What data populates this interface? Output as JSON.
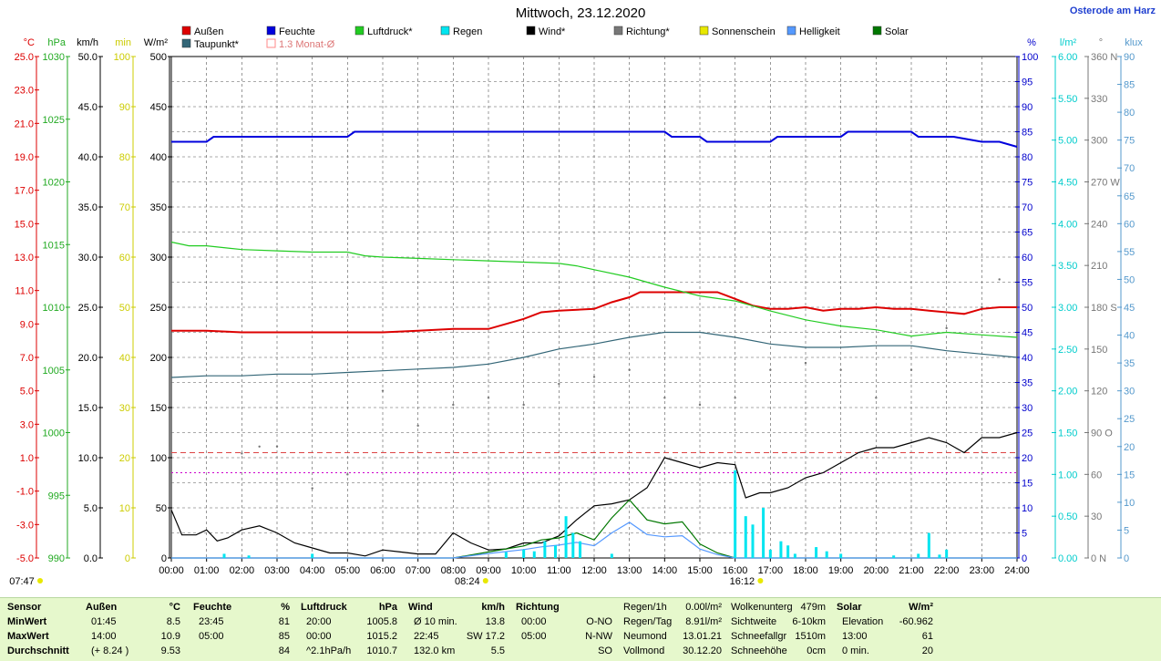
{
  "title": "Mittwoch, 23.12.2020",
  "location": "Osterode am Harz",
  "colors": {
    "aussen": "#dd0000",
    "feuchte": "#0000dd",
    "luftdruck": "#22cc22",
    "regen": "#00e5f0",
    "wind": "#000000",
    "richtung": "#777777",
    "sonnenschein": "#e8e800",
    "helligkeit": "#5599ff",
    "solar": "#007700",
    "taupunkt": "#336677",
    "monat": "#ff8888"
  },
  "legend": [
    {
      "key": "aussen",
      "label": "Außen"
    },
    {
      "key": "feuchte",
      "label": "Feuchte"
    },
    {
      "key": "luftdruck",
      "label": "Luftdruck*"
    },
    {
      "key": "regen",
      "label": "Regen"
    },
    {
      "key": "wind",
      "label": "Wind*"
    },
    {
      "key": "richtung",
      "label": "Richtung*"
    },
    {
      "key": "sonnenschein",
      "label": "Sonnenschein"
    },
    {
      "key": "helligkeit",
      "label": "Helligkeit"
    },
    {
      "key": "solar",
      "label": "Solar"
    },
    {
      "key": "taupunkt",
      "label": "Taupunkt*"
    },
    {
      "key": "monat",
      "label": "1.3 Monat-Ø"
    }
  ],
  "chart_data": {
    "type": "line",
    "x_ticks": [
      "00:00",
      "01:00",
      "02:00",
      "03:00",
      "04:00",
      "05:00",
      "06:00",
      "07:00",
      "08:00",
      "09:00",
      "10:00",
      "11:00",
      "12:00",
      "13:00",
      "14:00",
      "15:00",
      "16:00",
      "17:00",
      "18:00",
      "19:00",
      "20:00",
      "21:00",
      "22:00",
      "23:00",
      "24:00"
    ],
    "axes_left": [
      {
        "unit": "°C",
        "color": "#dd0000",
        "ticks": [
          "25.0",
          "23.0",
          "21.0",
          "19.0",
          "17.0",
          "15.0",
          "13.0",
          "11.0",
          "9.0",
          "7.0",
          "5.0",
          "3.0",
          "1.0",
          "-1.0",
          "-3.0",
          "-5.0"
        ]
      },
      {
        "unit": "hPa",
        "color": "#22aa22",
        "ticks": [
          "1030",
          "1025",
          "1020",
          "1015",
          "1010",
          "1005",
          "1000",
          "995",
          "990"
        ]
      },
      {
        "unit": "km/h",
        "color": "#000000",
        "ticks": [
          "50.0",
          "45.0",
          "40.0",
          "35.0",
          "30.0",
          "25.0",
          "20.0",
          "15.0",
          "10.0",
          "5.0",
          "0.0"
        ]
      },
      {
        "unit": "min",
        "color": "#cccc00",
        "ticks": [
          "100",
          "90",
          "80",
          "70",
          "60",
          "50",
          "40",
          "30",
          "20",
          "10",
          "0"
        ]
      },
      {
        "unit": "W/m²",
        "color": "#000000",
        "ticks": [
          "500",
          "450",
          "400",
          "350",
          "300",
          "250",
          "200",
          "150",
          "100",
          "50",
          "0"
        ]
      }
    ],
    "axes_right": [
      {
        "unit": "%",
        "color": "#0000cc",
        "ticks": [
          "100",
          "95",
          "90",
          "85",
          "80",
          "75",
          "70",
          "65",
          "60",
          "55",
          "50",
          "45",
          "40",
          "35",
          "30",
          "25",
          "20",
          "15",
          "10",
          "5",
          "0"
        ]
      },
      {
        "unit": "l/m²",
        "color": "#00cccc",
        "ticks": [
          "6.00",
          "5.50",
          "5.00",
          "4.50",
          "4.00",
          "3.50",
          "3.00",
          "2.50",
          "2.00",
          "1.50",
          "1.00",
          "0.50",
          "0.00"
        ]
      },
      {
        "unit": "°",
        "color": "#777777",
        "ticks": [
          "360 N",
          "330",
          "300",
          "270 W",
          "240",
          "210",
          "180 S",
          "150",
          "120",
          "90 O",
          "60",
          "30",
          "0 N"
        ]
      },
      {
        "unit": "klux",
        "color": "#5599cc",
        "ticks": [
          "90",
          "85",
          "80",
          "75",
          "70",
          "65",
          "60",
          "55",
          "50",
          "45",
          "40",
          "35",
          "30",
          "25",
          "20",
          "15",
          "10",
          "5",
          "0"
        ]
      }
    ],
    "temp_range": [
      -5,
      25
    ],
    "feuchte_range": [
      0,
      100
    ],
    "wind_range": [
      0,
      50
    ],
    "pressure_range": [
      990,
      1030
    ],
    "rain_range": [
      0,
      6
    ],
    "series": [
      {
        "name": "Außen",
        "key": "aussen",
        "unit": "°C",
        "x": [
          0,
          1,
          2,
          3,
          4,
          5,
          6,
          7,
          8,
          9,
          10,
          10.5,
          11,
          12,
          12.5,
          13,
          13.3,
          14,
          14.5,
          15,
          15.5,
          16,
          16.5,
          17,
          17.5,
          18,
          18.5,
          19,
          19.5,
          20,
          20.5,
          21,
          21.5,
          22,
          22.5,
          23,
          23.5,
          24
        ],
        "y": [
          8.6,
          8.6,
          8.5,
          8.5,
          8.5,
          8.5,
          8.5,
          8.6,
          8.7,
          8.7,
          9.3,
          9.7,
          9.8,
          9.9,
          10.3,
          10.6,
          10.9,
          10.9,
          10.9,
          10.9,
          10.9,
          10.5,
          10.1,
          9.9,
          9.9,
          10.0,
          9.8,
          9.9,
          9.9,
          10.0,
          9.9,
          9.9,
          9.8,
          9.7,
          9.6,
          9.9,
          10.0,
          10.0
        ]
      },
      {
        "name": "Feuchte",
        "key": "feuchte",
        "unit": "%",
        "x": [
          0,
          1,
          1.2,
          5,
          5.2,
          14,
          14.2,
          15,
          15.2,
          16,
          16.2,
          17,
          17.2,
          18,
          18.2,
          19,
          19.2,
          21,
          21.2,
          22,
          22.2,
          23,
          23.5,
          24
        ],
        "y": [
          83,
          83,
          84,
          84,
          85,
          85,
          84,
          84,
          83,
          83,
          83,
          83,
          84,
          84,
          84,
          84,
          85,
          85,
          84,
          84,
          84,
          83,
          83,
          82
        ]
      },
      {
        "name": "Luftdruck",
        "key": "luftdruck",
        "unit": "hPa",
        "x": [
          0,
          0.5,
          1,
          2,
          3,
          4,
          5,
          5.5,
          6,
          7,
          8,
          9,
          10,
          11,
          11.5,
          12,
          13,
          14,
          15,
          16,
          17,
          18,
          19,
          20,
          21,
          22,
          23,
          24
        ],
        "y": [
          1015.2,
          1014.9,
          1014.9,
          1014.6,
          1014.5,
          1014.4,
          1014.4,
          1014.1,
          1014.0,
          1013.9,
          1013.8,
          1013.7,
          1013.6,
          1013.5,
          1013.3,
          1013.0,
          1012.4,
          1011.6,
          1010.9,
          1010.5,
          1009.7,
          1009.0,
          1008.5,
          1008.2,
          1007.7,
          1008.0,
          1007.8,
          1007.6
        ]
      },
      {
        "name": "Taupunkt",
        "key": "taupunkt",
        "unit": "°C",
        "x": [
          0,
          1,
          2,
          3,
          4,
          5,
          6,
          7,
          8,
          9,
          10,
          11,
          12,
          13,
          14,
          15,
          16,
          17,
          18,
          19,
          20,
          21,
          22,
          23,
          24
        ],
        "y": [
          5.8,
          5.9,
          5.9,
          6.0,
          6.0,
          6.1,
          6.2,
          6.3,
          6.4,
          6.6,
          7.0,
          7.5,
          7.8,
          8.2,
          8.5,
          8.5,
          8.2,
          7.8,
          7.6,
          7.6,
          7.7,
          7.7,
          7.4,
          7.2,
          7.0
        ]
      },
      {
        "name": "Wind",
        "key": "wind",
        "unit": "km/h",
        "x": [
          0,
          0.3,
          0.7,
          1,
          1.3,
          1.6,
          2,
          2.5,
          3,
          3.5,
          4,
          4.5,
          5,
          5.5,
          6,
          6.5,
          7,
          7.5,
          8,
          8.5,
          9,
          9.5,
          10,
          10.5,
          11,
          11.5,
          12,
          12.5,
          13,
          13.5,
          14,
          14.5,
          15,
          15.5,
          16,
          16.3,
          16.7,
          17,
          17.5,
          18,
          18.5,
          19,
          19.5,
          20,
          20.5,
          21,
          21.5,
          22,
          22.5,
          23,
          23.5,
          24
        ],
        "y": [
          4.8,
          2.3,
          2.3,
          2.8,
          1.7,
          2.0,
          2.8,
          3.2,
          2.5,
          1.5,
          1.0,
          0.5,
          0.5,
          0.2,
          0.8,
          0.6,
          0.4,
          0.4,
          2.5,
          1.5,
          0.8,
          0.9,
          1.5,
          1.5,
          2.2,
          3.8,
          5.2,
          5.4,
          5.8,
          7.0,
          10.0,
          9.5,
          9.0,
          9.5,
          9.3,
          6.0,
          6.5,
          6.5,
          7.0,
          8.0,
          8.5,
          9.5,
          10.5,
          11.0,
          11.0,
          11.5,
          12.0,
          11.5,
          10.5,
          12.0,
          12.0,
          12.5
        ]
      },
      {
        "name": "Solar",
        "key": "solar",
        "unit": "W/m²",
        "x": [
          0,
          8,
          9,
          10,
          10.5,
          11,
          11.5,
          12,
          12.5,
          13,
          13.5,
          14,
          14.5,
          15,
          15.5,
          16,
          24
        ],
        "y": [
          0,
          0,
          6,
          12,
          18,
          20,
          25,
          18,
          40,
          58,
          38,
          34,
          36,
          14,
          5,
          0,
          0
        ]
      },
      {
        "name": "Helligkeit",
        "key": "helligkeit",
        "unit": "klux",
        "x": [
          0,
          8,
          9,
          10,
          10.5,
          11,
          11.5,
          12,
          12.5,
          13,
          13.5,
          14,
          14.5,
          15,
          15.5,
          16,
          24
        ],
        "y": [
          0,
          0,
          0.8,
          1.5,
          2.0,
          2.3,
          2.8,
          2.2,
          4.5,
          6.4,
          4.2,
          3.8,
          4.0,
          1.6,
          0.6,
          0,
          0
        ]
      },
      {
        "name": "Richtung",
        "key": "richtung",
        "unit": "°",
        "x": [
          2,
          2.5,
          3,
          4,
          5,
          6,
          7,
          8,
          9,
          10,
          11,
          12,
          13,
          14,
          15,
          16,
          17,
          18,
          19,
          20,
          21,
          22,
          23,
          23.5
        ],
        "y": [
          75,
          80,
          80,
          50,
          60,
          120,
          95,
          110,
          115,
          110,
          125,
          130,
          135,
          115,
          110,
          115,
          135,
          140,
          135,
          115,
          135,
          165,
          180,
          200
        ]
      },
      {
        "name": "Regen",
        "key": "regen",
        "unit": "l/m²",
        "bars": [
          [
            1.5,
            0.05
          ],
          [
            2.2,
            0.03
          ],
          [
            4,
            0.05
          ],
          [
            9.5,
            0.07
          ],
          [
            10,
            0.1
          ],
          [
            10.3,
            0.08
          ],
          [
            10.6,
            0.2
          ],
          [
            10.9,
            0.15
          ],
          [
            11.2,
            0.5
          ],
          [
            11.4,
            0.3
          ],
          [
            11.6,
            0.2
          ],
          [
            12.5,
            0.05
          ],
          [
            16,
            1.05
          ],
          [
            16.3,
            0.5
          ],
          [
            16.5,
            0.4
          ],
          [
            16.8,
            0.6
          ],
          [
            17,
            0.1
          ],
          [
            17.3,
            0.2
          ],
          [
            17.5,
            0.15
          ],
          [
            17.7,
            0.05
          ],
          [
            18.3,
            0.13
          ],
          [
            18.6,
            0.08
          ],
          [
            19.0,
            0.05
          ],
          [
            20.5,
            0.03
          ],
          [
            21.2,
            0.05
          ],
          [
            21.5,
            0.3
          ],
          [
            21.8,
            0.04
          ],
          [
            22.0,
            0.1
          ]
        ]
      }
    ],
    "monat_line_temp": 1.3,
    "extra_hline_temp": 1.4,
    "magenta_hline_wind": 8.5,
    "sun_markers": [
      {
        "label": "07:47",
        "x": 0.0
      },
      {
        "label": "08:24",
        "x": 8.4
      },
      {
        "label": "16:12",
        "x": 16.2
      }
    ]
  },
  "stats": {
    "sensor": {
      "h": "Sensor",
      "rows": [
        "MinWert",
        "MaxWert",
        "Durchschnitt"
      ]
    },
    "aussen": {
      "h": "Außen",
      "u": "°C",
      "rows": [
        [
          "01:45",
          "8.5"
        ],
        [
          "14:00",
          "10.9"
        ],
        [
          "(+ 8.24 )",
          "9.53"
        ]
      ]
    },
    "feuchte": {
      "h": "Feuchte",
      "u": "%",
      "rows": [
        [
          "23:45",
          "81"
        ],
        [
          "05:00",
          "85"
        ],
        [
          "",
          "84"
        ]
      ]
    },
    "luftdruck": {
      "h": "Luftdruck",
      "u": "hPa",
      "rows": [
        [
          "20:00",
          "1005.8"
        ],
        [
          "00:00",
          "1015.2"
        ],
        [
          "^2.1hPa/h",
          "1010.7"
        ]
      ]
    },
    "wind": {
      "h": "Wind",
      "u": "km/h",
      "rows": [
        [
          "Ø 10 min.",
          "13.8"
        ],
        [
          "22:45",
          "SW 17.2"
        ],
        [
          "132.0 km",
          "5.5"
        ]
      ]
    },
    "richtung": {
      "h": "Richtung",
      "u": "",
      "rows": [
        [
          "00:00",
          "O-NO"
        ],
        [
          "05:00",
          "N-NW"
        ],
        [
          "",
          "SO"
        ]
      ]
    },
    "regen": {
      "rows": [
        [
          "Regen/1h",
          "0.00l/m²"
        ],
        [
          "Regen/Tag",
          "8.91l/m²"
        ],
        [
          "Neumond",
          "13.01.21"
        ],
        [
          "Vollmond",
          "30.12.20"
        ]
      ]
    },
    "wolken": {
      "rows": [
        [
          "Wolkenunterg",
          "479m"
        ],
        [
          "Sichtweite",
          "6-10km"
        ],
        [
          "Schneefallgr",
          "1510m"
        ],
        [
          "Schneehöhe",
          "0cm"
        ]
      ]
    },
    "solar": {
      "h": "Solar",
      "u": "W/m²",
      "rows": [
        [
          "Elevation",
          "-60.962"
        ],
        [
          "13:00",
          "61"
        ],
        [
          "0 min.",
          "20"
        ]
      ]
    }
  }
}
